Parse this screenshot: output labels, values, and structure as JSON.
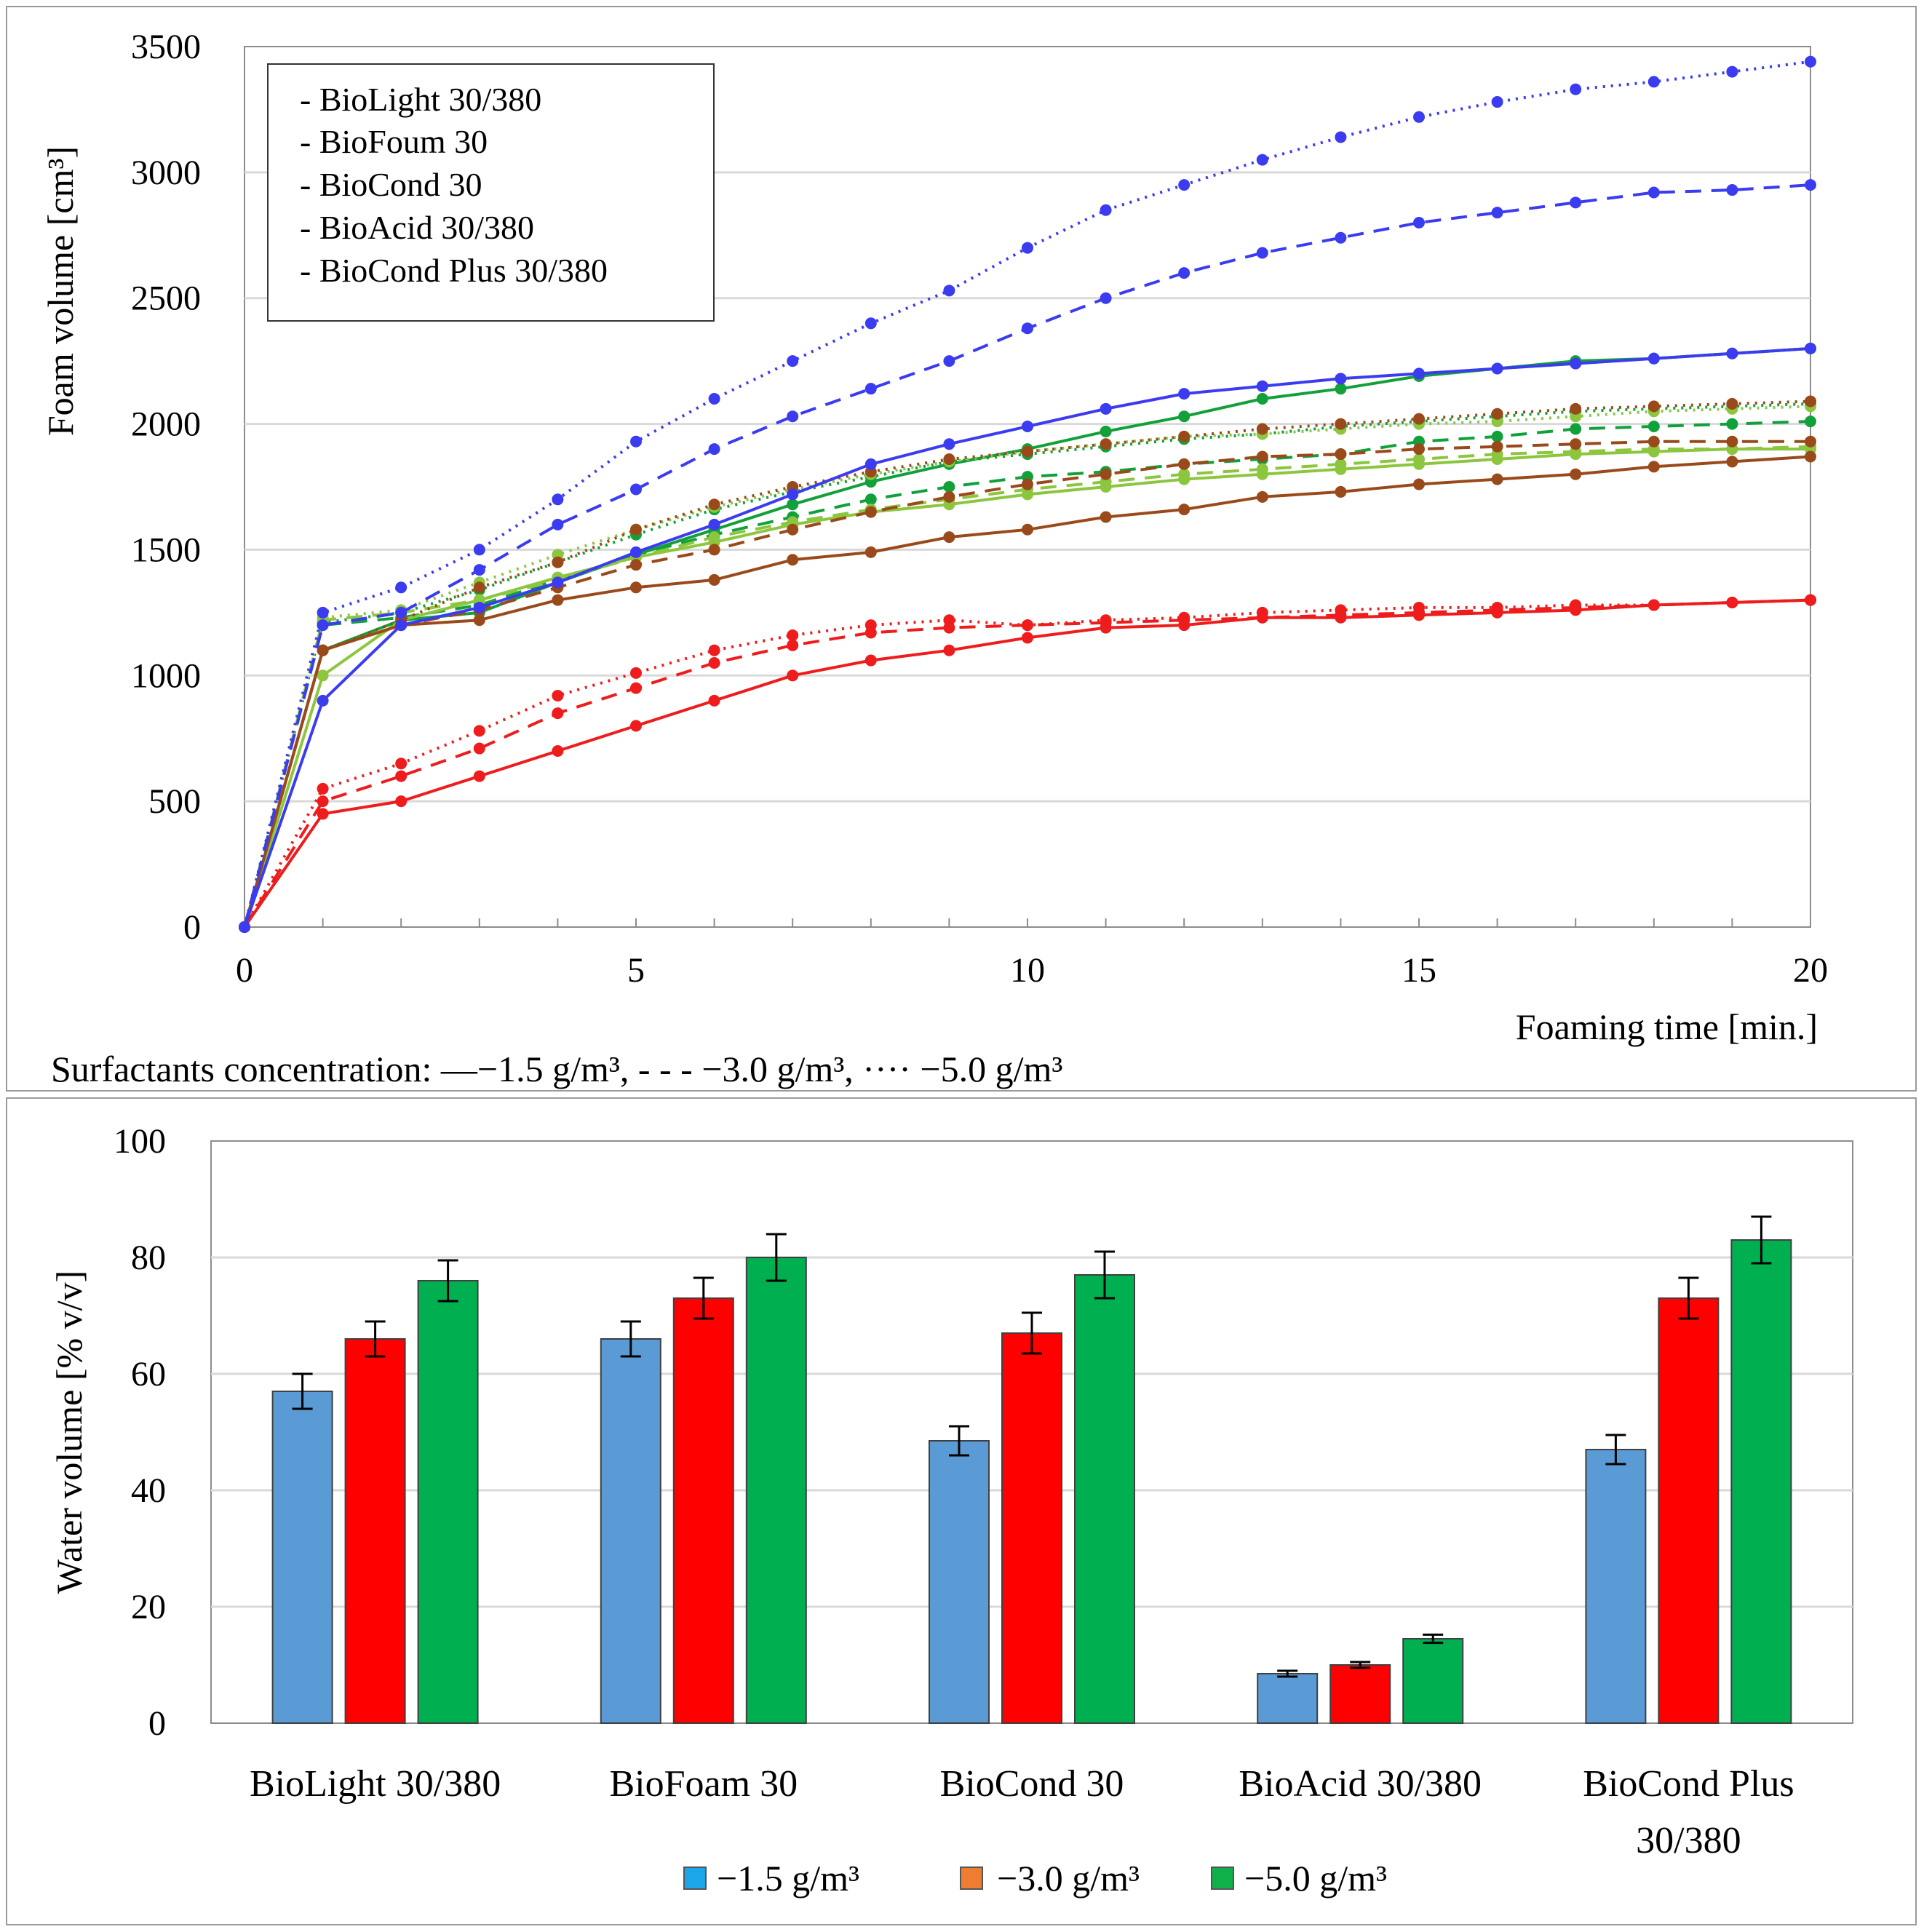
{
  "chart_data": [
    {
      "type": "line",
      "title": "",
      "xlabel": "Foaming time [min.]",
      "ylabel": "Foam volume [cm³]",
      "xlim": [
        0,
        20
      ],
      "ylim": [
        0,
        3500
      ],
      "xticks": [
        "0",
        "5",
        "10",
        "15",
        "20"
      ],
      "yticks": [
        "0",
        "500",
        "1000",
        "1500",
        "2000",
        "2500",
        "3000",
        "3500"
      ],
      "grid": "horizontal",
      "legend": {
        "position": "top-left",
        "entries": [
          {
            "label": "- BioLight 30/380",
            "color": "#12a03a"
          },
          {
            "label": "- BioFoum 30",
            "color": "#8cc63f"
          },
          {
            "label": "- BioCond 30",
            "color": "#b22a12"
          },
          {
            "label": "- BioAcid 30/380",
            "color": "#ee1c1c"
          },
          {
            "label": "- BioCond Plus 30/380",
            "color": "#3b3bf0"
          }
        ]
      },
      "caption": "Surfactants concentration: —−1.5 g/m³, - - -  −3.0 g/m³, ···· −5.0 g/m³",
      "x": [
        0,
        1,
        2,
        3,
        4,
        5,
        6,
        7,
        8,
        9,
        10,
        11,
        12,
        13,
        14,
        15,
        16,
        17,
        18,
        19,
        20
      ],
      "series": [
        {
          "name": "BioLight 30/380 −1.5",
          "color": "#12a03a",
          "dash": "solid",
          "values": [
            0,
            1100,
            1220,
            1250,
            1370,
            1480,
            1580,
            1680,
            1770,
            1840,
            1900,
            1970,
            2030,
            2100,
            2140,
            2190,
            2220,
            2250,
            2260,
            2280,
            2300
          ]
        },
        {
          "name": "BioLight 30/380 −3.0",
          "color": "#12a03a",
          "dash": "dashed",
          "values": [
            0,
            1200,
            1230,
            1280,
            1380,
            1480,
            1560,
            1630,
            1700,
            1750,
            1790,
            1810,
            1840,
            1860,
            1880,
            1930,
            1950,
            1980,
            1990,
            2000,
            2010
          ]
        },
        {
          "name": "BioLight 30/380 −5.0",
          "color": "#12a03a",
          "dash": "dotted",
          "values": [
            0,
            1210,
            1250,
            1340,
            1450,
            1560,
            1660,
            1730,
            1790,
            1850,
            1880,
            1910,
            1940,
            1960,
            1990,
            2010,
            2030,
            2050,
            2060,
            2070,
            2080
          ]
        },
        {
          "name": "BioFoum 30 −1.5",
          "color": "#8cc63f",
          "dash": "solid",
          "values": [
            0,
            1000,
            1220,
            1300,
            1390,
            1470,
            1530,
            1600,
            1650,
            1680,
            1720,
            1750,
            1780,
            1800,
            1820,
            1840,
            1860,
            1880,
            1890,
            1900,
            1900
          ]
        },
        {
          "name": "BioFoum 30 −3.0",
          "color": "#8cc63f",
          "dash": "dashed",
          "values": [
            0,
            1220,
            1250,
            1300,
            1380,
            1470,
            1550,
            1610,
            1660,
            1700,
            1740,
            1770,
            1800,
            1820,
            1840,
            1860,
            1880,
            1890,
            1900,
            1900,
            1910
          ]
        },
        {
          "name": "BioFoum 30 −5.0",
          "color": "#8cc63f",
          "dash": "dotted",
          "values": [
            0,
            1230,
            1260,
            1370,
            1480,
            1580,
            1670,
            1740,
            1800,
            1850,
            1890,
            1920,
            1950,
            1960,
            1980,
            2000,
            2010,
            2030,
            2050,
            2060,
            2070
          ]
        },
        {
          "name": "BioCond 30 −1.5",
          "color": "#9a4a1a",
          "dash": "solid",
          "values": [
            0,
            1100,
            1200,
            1220,
            1300,
            1350,
            1380,
            1460,
            1490,
            1550,
            1580,
            1630,
            1660,
            1710,
            1730,
            1760,
            1780,
            1800,
            1830,
            1850,
            1870
          ]
        },
        {
          "name": "BioCond 30 −3.0",
          "color": "#9a4a1a",
          "dash": "dashed",
          "values": [
            0,
            1100,
            1200,
            1260,
            1350,
            1440,
            1500,
            1580,
            1650,
            1710,
            1760,
            1800,
            1840,
            1870,
            1880,
            1900,
            1910,
            1920,
            1930,
            1930,
            1930
          ]
        },
        {
          "name": "BioCond 30 −5.0",
          "color": "#9a4a1a",
          "dash": "dotted",
          "values": [
            0,
            1100,
            1220,
            1350,
            1450,
            1580,
            1680,
            1750,
            1810,
            1860,
            1890,
            1920,
            1950,
            1980,
            2000,
            2020,
            2040,
            2060,
            2070,
            2080,
            2090
          ]
        },
        {
          "name": "BioAcid 30/380 −1.5",
          "color": "#ee1c1c",
          "dash": "solid",
          "values": [
            0,
            450,
            500,
            600,
            700,
            800,
            900,
            1000,
            1060,
            1100,
            1150,
            1190,
            1200,
            1230,
            1230,
            1240,
            1250,
            1260,
            1280,
            1290,
            1300
          ]
        },
        {
          "name": "BioAcid 30/380 −3.0",
          "color": "#ee1c1c",
          "dash": "dashed",
          "values": [
            0,
            500,
            600,
            710,
            850,
            950,
            1050,
            1120,
            1170,
            1190,
            1200,
            1210,
            1220,
            1230,
            1240,
            1250,
            1260,
            1270,
            1280,
            1290,
            1300
          ]
        },
        {
          "name": "BioAcid 30/380 −5.0",
          "color": "#ee1c1c",
          "dash": "dotted",
          "values": [
            0,
            550,
            650,
            780,
            920,
            1010,
            1100,
            1160,
            1200,
            1220,
            1200,
            1220,
            1230,
            1250,
            1260,
            1270,
            1270,
            1280,
            1280,
            1290,
            1300
          ]
        },
        {
          "name": "BioCond Plus 30/380 −1.5",
          "color": "#3b3bf0",
          "dash": "solid",
          "values": [
            0,
            900,
            1200,
            1270,
            1370,
            1490,
            1600,
            1720,
            1840,
            1920,
            1990,
            2060,
            2120,
            2150,
            2180,
            2200,
            2220,
            2240,
            2260,
            2280,
            2300
          ]
        },
        {
          "name": "BioCond Plus 30/380 −3.0",
          "color": "#3b3bf0",
          "dash": "dashed",
          "values": [
            0,
            1200,
            1250,
            1420,
            1600,
            1740,
            1900,
            2030,
            2140,
            2250,
            2380,
            2500,
            2600,
            2680,
            2740,
            2800,
            2840,
            2880,
            2920,
            2930,
            2950
          ]
        },
        {
          "name": "BioCond Plus 30/380 −5.0",
          "color": "#3b3bf0",
          "dash": "dotted",
          "values": [
            0,
            1250,
            1350,
            1500,
            1700,
            1930,
            2100,
            2250,
            2400,
            2530,
            2700,
            2850,
            2950,
            3050,
            3140,
            3220,
            3280,
            3330,
            3360,
            3400,
            3440
          ]
        }
      ]
    },
    {
      "type": "bar",
      "title": "",
      "xlabel": "",
      "ylabel": "Water volume [% v/v]",
      "ylim": [
        0,
        100
      ],
      "yticks": [
        "0",
        "20",
        "40",
        "60",
        "80",
        "100"
      ],
      "grid": "horizontal",
      "categories": [
        [
          "BioLight 30/380"
        ],
        [
          "BioFoam 30"
        ],
        [
          "BioCond 30"
        ],
        [
          "BioAcid 30/380"
        ],
        [
          "BioCond Plus",
          "30/380"
        ]
      ],
      "legend": {
        "position": "bottom",
        "entries": [
          {
            "label": "−1.5 g/m³",
            "color": "#1aa6e8"
          },
          {
            "label": "−3.0 g/m³",
            "color": "#ed7d31"
          },
          {
            "label": "−5.0 g/m³",
            "color": "#10b04a"
          }
        ]
      },
      "series": [
        {
          "name": "−1.5 g/m³",
          "color": "#5b9bd5",
          "values": [
            57,
            66,
            48.5,
            8.5,
            47
          ],
          "errors": [
            3,
            3,
            2.5,
            0.5,
            2.5
          ]
        },
        {
          "name": "−3.0 g/m³",
          "color": "#ff0000",
          "values": [
            66,
            73,
            67,
            10,
            73
          ],
          "errors": [
            3,
            3.5,
            3.5,
            0.5,
            3.5
          ]
        },
        {
          "name": "−5.0 g/m³",
          "color": "#00b050",
          "values": [
            76,
            80,
            77,
            14.5,
            83
          ],
          "errors": [
            3.5,
            4,
            4,
            0.7,
            4
          ]
        }
      ]
    }
  ]
}
